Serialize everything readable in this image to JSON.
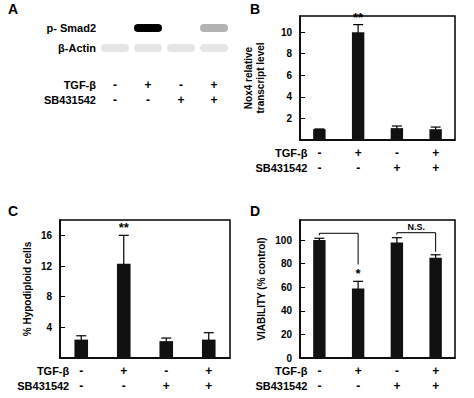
{
  "blot": {
    "panel": "A",
    "rows": [
      {
        "label": "p- Smad2",
        "intensity": [
          0,
          1,
          0,
          0.3
        ]
      },
      {
        "label": "β-Actin",
        "intensity": [
          0.1,
          0.1,
          0.1,
          0.1
        ]
      }
    ],
    "treatments": [
      {
        "name": "TGF-β",
        "signs": [
          "-",
          "+",
          "-",
          "+"
        ]
      },
      {
        "name": "SB431542",
        "signs": [
          "-",
          "-",
          "+",
          "+"
        ]
      }
    ]
  },
  "chart_data": [
    {
      "panel": "B",
      "type": "bar",
      "y_label": "Nox4 relative\ntranscript level",
      "values": [
        1,
        10,
        1.1,
        1
      ],
      "errors": [
        0,
        0.7,
        0.2,
        0.2
      ],
      "color": "#111111",
      "ylim": [
        0,
        11.5
      ],
      "yticks": [
        2,
        4,
        6,
        8,
        10
      ],
      "grid": false,
      "annotations": [
        {
          "index": 1,
          "text": "**"
        }
      ],
      "treatments": [
        {
          "name": "TGF-β",
          "signs": [
            "-",
            "+",
            "-",
            "+"
          ]
        },
        {
          "name": "SB431542",
          "signs": [
            "-",
            "-",
            "+",
            "+"
          ]
        }
      ]
    },
    {
      "panel": "C",
      "type": "bar",
      "y_label": "% Hypodiploid cells",
      "values": [
        2.4,
        12.3,
        2.2,
        2.4
      ],
      "errors": [
        0.5,
        3.7,
        0.4,
        0.9
      ],
      "color": "#111111",
      "ylim": [
        0,
        18
      ],
      "yticks": [
        4,
        8,
        12,
        16
      ],
      "grid": false,
      "annotations": [
        {
          "index": 1,
          "text": "**"
        }
      ],
      "treatments": [
        {
          "name": "TGF-β",
          "signs": [
            "-",
            "+",
            "-",
            "+"
          ]
        },
        {
          "name": "SB431542",
          "signs": [
            "-",
            "-",
            "+",
            "+"
          ]
        }
      ]
    },
    {
      "panel": "D",
      "type": "bar",
      "y_label": "VIABILITY (% control)",
      "values": [
        100,
        59,
        98,
        85
      ],
      "errors": [
        1.5,
        6,
        4,
        2.5
      ],
      "color": "#111111",
      "ylim": [
        0,
        117
      ],
      "yticks": [
        0,
        20,
        40,
        60,
        80,
        100
      ],
      "grid": false,
      "annotations": [
        {
          "index": 1,
          "text": "*"
        }
      ],
      "brackets": [
        {
          "from": 0,
          "to": 1
        },
        {
          "from": 2,
          "to": 3,
          "text": "N.S."
        }
      ],
      "treatments": [
        {
          "name": "TGF-β",
          "signs": [
            "-",
            "+",
            "-",
            "+"
          ]
        },
        {
          "name": "SB431542",
          "signs": [
            "-",
            "-",
            "+",
            "+"
          ]
        }
      ]
    }
  ]
}
